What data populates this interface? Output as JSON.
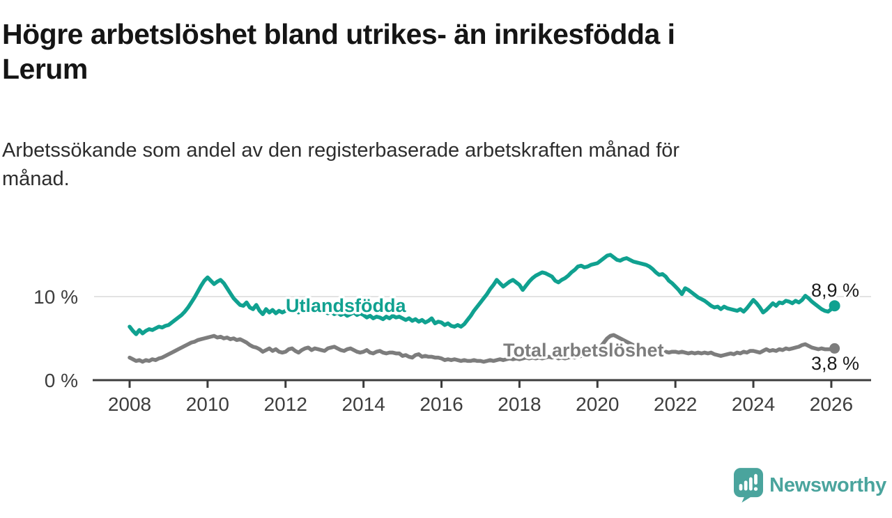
{
  "header": {
    "title": "Högre arbetslöshet bland utrikes- än inrikesfödda i\nLerum",
    "subtitle": "Arbetssökande som andel av den registerbaserade arbetskraften månad för\nmånad."
  },
  "chart_data": {
    "type": "line",
    "unit": "%",
    "x_start": {
      "year": 2008,
      "month": 1
    },
    "x_end": {
      "year": 2026,
      "month": 2
    },
    "x_ticks": [
      2008,
      2010,
      2012,
      2014,
      2016,
      2018,
      2020,
      2022,
      2024,
      2026
    ],
    "y_ticks": [
      {
        "value": 10,
        "label": "10 %",
        "grid": true
      },
      {
        "value": 0,
        "label": "0 %",
        "grid": false
      }
    ],
    "ylim": [
      0,
      16
    ],
    "grid": "horizontal-only",
    "legend_position": "inline-labels",
    "series": [
      {
        "name": "Utlandsfödda",
        "color": "#10a190",
        "end_label": "8,9 %",
        "end_value": 8.9,
        "values": [
          6.4,
          5.9,
          5.5,
          6.0,
          5.6,
          5.9,
          6.1,
          6.0,
          6.2,
          6.4,
          6.3,
          6.5,
          6.6,
          6.9,
          7.2,
          7.5,
          7.8,
          8.2,
          8.7,
          9.3,
          9.9,
          10.6,
          11.3,
          11.9,
          12.3,
          11.9,
          11.5,
          11.8,
          12.0,
          11.6,
          11.0,
          10.4,
          9.8,
          9.4,
          9.0,
          8.9,
          9.3,
          8.7,
          8.5,
          9.0,
          8.3,
          7.9,
          8.5,
          8.1,
          8.4,
          8.0,
          8.3,
          8.1,
          8.3,
          8.6,
          8.2,
          8.5,
          8.1,
          8.4,
          8.2,
          8.5,
          8.3,
          8.1,
          8.4,
          8.2,
          8.2,
          8.0,
          8.2,
          7.9,
          8.1,
          7.8,
          8.0,
          7.7,
          7.9,
          8.1,
          7.8,
          8.0,
          7.8,
          7.5,
          7.7,
          7.4,
          7.6,
          7.5,
          7.3,
          7.6,
          7.4,
          7.7,
          7.5,
          7.6,
          7.4,
          7.2,
          7.4,
          7.1,
          7.3,
          7.0,
          7.2,
          6.9,
          7.1,
          7.4,
          6.8,
          7.0,
          6.9,
          6.6,
          6.8,
          6.5,
          6.4,
          6.6,
          6.4,
          6.7,
          7.2,
          7.7,
          8.3,
          8.8,
          9.3,
          9.8,
          10.3,
          10.9,
          11.4,
          12.0,
          11.6,
          11.2,
          11.5,
          11.8,
          12.0,
          11.7,
          11.4,
          10.8,
          11.3,
          11.8,
          12.2,
          12.5,
          12.7,
          12.9,
          12.8,
          12.6,
          12.4,
          11.9,
          11.7,
          12.0,
          12.2,
          12.5,
          12.9,
          13.2,
          13.6,
          13.7,
          13.5,
          13.6,
          13.8,
          13.9,
          14.0,
          14.3,
          14.6,
          14.9,
          15.0,
          14.7,
          14.4,
          14.3,
          14.5,
          14.6,
          14.4,
          14.2,
          14.1,
          14.0,
          13.9,
          13.8,
          13.6,
          13.3,
          12.9,
          12.6,
          12.7,
          12.4,
          11.9,
          11.6,
          11.2,
          10.8,
          10.3,
          11.0,
          10.8,
          10.5,
          10.2,
          9.9,
          9.7,
          9.5,
          9.2,
          8.9,
          8.7,
          8.8,
          8.5,
          8.8,
          8.6,
          8.5,
          8.4,
          8.3,
          8.5,
          8.2,
          8.6,
          9.1,
          9.6,
          9.2,
          8.7,
          8.1,
          8.4,
          8.8,
          9.2,
          8.9,
          9.3,
          9.2,
          9.5,
          9.4,
          9.2,
          9.5,
          9.3,
          9.6,
          10.1,
          9.8,
          9.4,
          9.1,
          8.8,
          8.5,
          8.3,
          8.2,
          8.5,
          8.9
        ]
      },
      {
        "name": "Total arbetslöshet",
        "color": "#7d7d7d",
        "end_label": "3,8 %",
        "end_value": 3.8,
        "values": [
          2.7,
          2.5,
          2.3,
          2.4,
          2.2,
          2.4,
          2.3,
          2.5,
          2.4,
          2.6,
          2.7,
          2.9,
          3.1,
          3.3,
          3.5,
          3.7,
          3.9,
          4.1,
          4.3,
          4.5,
          4.6,
          4.8,
          4.9,
          5.0,
          5.1,
          5.2,
          5.3,
          5.1,
          5.2,
          5.0,
          5.1,
          4.9,
          5.0,
          4.8,
          4.9,
          4.7,
          4.5,
          4.2,
          4.0,
          3.9,
          3.7,
          3.4,
          3.6,
          3.8,
          3.5,
          3.7,
          3.4,
          3.3,
          3.4,
          3.7,
          3.8,
          3.5,
          3.3,
          3.6,
          3.8,
          3.9,
          3.6,
          3.8,
          3.7,
          3.6,
          3.5,
          3.8,
          3.9,
          4.0,
          3.8,
          3.6,
          3.5,
          3.7,
          3.8,
          3.6,
          3.4,
          3.3,
          3.4,
          3.6,
          3.3,
          3.2,
          3.4,
          3.5,
          3.3,
          3.2,
          3.3,
          3.3,
          3.2,
          3.2,
          2.9,
          3.0,
          2.8,
          2.7,
          3.0,
          3.1,
          2.8,
          2.9,
          2.8,
          2.8,
          2.7,
          2.7,
          2.6,
          2.4,
          2.5,
          2.4,
          2.5,
          2.4,
          2.3,
          2.4,
          2.3,
          2.3,
          2.4,
          2.3,
          2.3,
          2.2,
          2.3,
          2.4,
          2.3,
          2.4,
          2.5,
          2.4,
          2.5,
          2.6,
          2.5,
          2.6,
          2.5,
          2.6,
          2.7,
          2.6,
          2.7,
          2.6,
          2.7,
          2.6,
          2.7,
          2.8,
          2.7,
          2.8,
          2.6,
          2.7,
          2.6,
          2.7,
          2.8,
          2.7,
          2.8,
          2.9,
          3.0,
          3.1,
          3.2,
          3.3,
          3.6,
          4.0,
          4.5,
          5.0,
          5.3,
          5.4,
          5.2,
          5.0,
          4.8,
          4.6,
          4.4,
          4.2,
          4.1,
          4.0,
          3.9,
          3.8,
          3.7,
          3.6,
          3.5,
          3.5,
          3.4,
          3.4,
          3.3,
          3.4,
          3.4,
          3.3,
          3.4,
          3.3,
          3.2,
          3.3,
          3.2,
          3.3,
          3.2,
          3.3,
          3.2,
          3.3,
          3.1,
          3.0,
          2.9,
          3.0,
          3.1,
          3.2,
          3.1,
          3.3,
          3.2,
          3.4,
          3.3,
          3.5,
          3.5,
          3.4,
          3.3,
          3.5,
          3.7,
          3.5,
          3.6,
          3.5,
          3.7,
          3.6,
          3.8,
          3.7,
          3.8,
          3.9,
          4.0,
          4.2,
          4.3,
          4.1,
          3.9,
          3.8,
          3.7,
          3.8,
          3.7,
          3.7,
          3.7,
          3.8
        ]
      }
    ]
  },
  "colors": {
    "accent_teal": "#10a190",
    "series_gray": "#7d7d7d",
    "gridline": "#d9d9d9",
    "axis": "#3c3c3c",
    "logo_teal": "#4aa49d"
  },
  "footer": {
    "brand": "Newsworthy"
  }
}
